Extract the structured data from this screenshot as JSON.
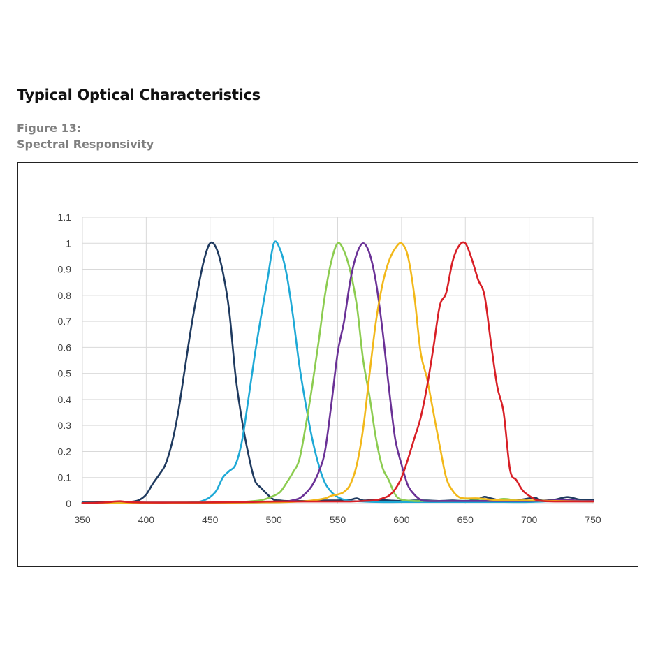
{
  "header": {
    "title": "Typical Optical Characteristics",
    "figure_number": "Figure 13:",
    "figure_title": "Spectral Responsivity"
  },
  "chart_data": {
    "type": "line",
    "title": "",
    "xlabel": "",
    "ylabel": "",
    "xlim": [
      350,
      750
    ],
    "ylim": [
      0,
      1.1
    ],
    "x_ticks": [
      350,
      400,
      450,
      500,
      550,
      600,
      650,
      700,
      750
    ],
    "y_ticks": [
      0,
      0.1,
      0.2,
      0.3,
      0.4,
      0.5,
      0.6,
      0.7,
      0.8,
      0.9,
      1,
      1.1
    ],
    "y_tick_labels": [
      "0",
      "0.1",
      "0.2",
      "0.3",
      "0.4",
      "0.5",
      "0.6",
      "0.7",
      "0.8",
      "0.9",
      "1",
      "1.1"
    ],
    "grid": true,
    "legend": "none",
    "series": [
      {
        "color": "#1f3a5f",
        "points": [
          [
            350,
            0.005
          ],
          [
            360,
            0.007
          ],
          [
            370,
            0.006
          ],
          [
            380,
            0.005
          ],
          [
            390,
            0.008
          ],
          [
            395,
            0.015
          ],
          [
            400,
            0.035
          ],
          [
            405,
            0.075
          ],
          [
            410,
            0.11
          ],
          [
            415,
            0.15
          ],
          [
            420,
            0.23
          ],
          [
            425,
            0.35
          ],
          [
            430,
            0.51
          ],
          [
            435,
            0.67
          ],
          [
            440,
            0.81
          ],
          [
            445,
            0.93
          ],
          [
            450,
            1.0
          ],
          [
            455,
            0.98
          ],
          [
            460,
            0.89
          ],
          [
            465,
            0.74
          ],
          [
            470,
            0.49
          ],
          [
            475,
            0.32
          ],
          [
            480,
            0.19
          ],
          [
            485,
            0.09
          ],
          [
            490,
            0.06
          ],
          [
            495,
            0.035
          ],
          [
            500,
            0.015
          ],
          [
            505,
            0.012
          ],
          [
            510,
            0.01
          ],
          [
            520,
            0.01
          ],
          [
            530,
            0.01
          ],
          [
            540,
            0.012
          ],
          [
            550,
            0.012
          ],
          [
            560,
            0.015
          ],
          [
            565,
            0.02
          ],
          [
            570,
            0.012
          ],
          [
            580,
            0.014
          ],
          [
            590,
            0.012
          ],
          [
            600,
            0.01
          ],
          [
            610,
            0.012
          ],
          [
            620,
            0.012
          ],
          [
            630,
            0.01
          ],
          [
            640,
            0.012
          ],
          [
            650,
            0.01
          ],
          [
            660,
            0.018
          ],
          [
            665,
            0.026
          ],
          [
            670,
            0.02
          ],
          [
            680,
            0.01
          ],
          [
            690,
            0.012
          ],
          [
            700,
            0.02
          ],
          [
            705,
            0.022
          ],
          [
            710,
            0.012
          ],
          [
            720,
            0.015
          ],
          [
            730,
            0.025
          ],
          [
            740,
            0.015
          ],
          [
            750,
            0.015
          ]
        ]
      },
      {
        "color": "#1ea9d6",
        "points": [
          [
            350,
            0.003
          ],
          [
            370,
            0.003
          ],
          [
            390,
            0.004
          ],
          [
            410,
            0.004
          ],
          [
            430,
            0.004
          ],
          [
            440,
            0.006
          ],
          [
            445,
            0.012
          ],
          [
            450,
            0.025
          ],
          [
            455,
            0.05
          ],
          [
            460,
            0.1
          ],
          [
            465,
            0.125
          ],
          [
            470,
            0.15
          ],
          [
            475,
            0.24
          ],
          [
            480,
            0.4
          ],
          [
            485,
            0.57
          ],
          [
            490,
            0.72
          ],
          [
            495,
            0.86
          ],
          [
            500,
            1.0
          ],
          [
            505,
            0.975
          ],
          [
            510,
            0.88
          ],
          [
            515,
            0.72
          ],
          [
            520,
            0.53
          ],
          [
            525,
            0.38
          ],
          [
            530,
            0.25
          ],
          [
            535,
            0.15
          ],
          [
            540,
            0.08
          ],
          [
            545,
            0.045
          ],
          [
            550,
            0.025
          ],
          [
            555,
            0.015
          ],
          [
            560,
            0.01
          ],
          [
            570,
            0.008
          ],
          [
            580,
            0.006
          ],
          [
            600,
            0.006
          ],
          [
            620,
            0.006
          ],
          [
            650,
            0.006
          ],
          [
            680,
            0.006
          ],
          [
            700,
            0.006
          ],
          [
            720,
            0.01
          ],
          [
            730,
            0.012
          ],
          [
            740,
            0.01
          ],
          [
            750,
            0.008
          ]
        ]
      },
      {
        "color": "#8ccc50",
        "points": [
          [
            350,
            0.002
          ],
          [
            400,
            0.003
          ],
          [
            450,
            0.004
          ],
          [
            470,
            0.006
          ],
          [
            480,
            0.008
          ],
          [
            490,
            0.013
          ],
          [
            495,
            0.02
          ],
          [
            500,
            0.03
          ],
          [
            505,
            0.045
          ],
          [
            510,
            0.08
          ],
          [
            515,
            0.12
          ],
          [
            520,
            0.17
          ],
          [
            525,
            0.3
          ],
          [
            530,
            0.45
          ],
          [
            535,
            0.62
          ],
          [
            540,
            0.8
          ],
          [
            545,
            0.93
          ],
          [
            550,
            1.0
          ],
          [
            555,
            0.97
          ],
          [
            560,
            0.89
          ],
          [
            565,
            0.76
          ],
          [
            570,
            0.55
          ],
          [
            575,
            0.41
          ],
          [
            580,
            0.25
          ],
          [
            585,
            0.14
          ],
          [
            590,
            0.09
          ],
          [
            595,
            0.035
          ],
          [
            600,
            0.015
          ],
          [
            610,
            0.01
          ],
          [
            620,
            0.01
          ],
          [
            640,
            0.01
          ],
          [
            660,
            0.012
          ],
          [
            670,
            0.01
          ],
          [
            680,
            0.018
          ],
          [
            690,
            0.012
          ],
          [
            700,
            0.01
          ],
          [
            720,
            0.01
          ],
          [
            750,
            0.008
          ]
        ]
      },
      {
        "color": "#6a3196",
        "points": [
          [
            350,
            0.001
          ],
          [
            400,
            0.002
          ],
          [
            450,
            0.003
          ],
          [
            480,
            0.004
          ],
          [
            500,
            0.006
          ],
          [
            510,
            0.008
          ],
          [
            515,
            0.013
          ],
          [
            520,
            0.02
          ],
          [
            525,
            0.04
          ],
          [
            530,
            0.07
          ],
          [
            535,
            0.12
          ],
          [
            540,
            0.2
          ],
          [
            545,
            0.38
          ],
          [
            550,
            0.58
          ],
          [
            555,
            0.7
          ],
          [
            560,
            0.86
          ],
          [
            565,
            0.96
          ],
          [
            570,
            1.0
          ],
          [
            575,
            0.96
          ],
          [
            580,
            0.85
          ],
          [
            585,
            0.67
          ],
          [
            590,
            0.45
          ],
          [
            595,
            0.25
          ],
          [
            600,
            0.15
          ],
          [
            605,
            0.07
          ],
          [
            610,
            0.035
          ],
          [
            615,
            0.015
          ],
          [
            620,
            0.01
          ],
          [
            640,
            0.01
          ],
          [
            660,
            0.01
          ],
          [
            680,
            0.01
          ],
          [
            700,
            0.01
          ],
          [
            720,
            0.012
          ],
          [
            730,
            0.015
          ],
          [
            740,
            0.01
          ],
          [
            750,
            0.01
          ]
        ]
      },
      {
        "color": "#f2b81a",
        "points": [
          [
            350,
            0.001
          ],
          [
            400,
            0.002
          ],
          [
            450,
            0.003
          ],
          [
            500,
            0.005
          ],
          [
            520,
            0.008
          ],
          [
            530,
            0.012
          ],
          [
            540,
            0.02
          ],
          [
            545,
            0.03
          ],
          [
            550,
            0.035
          ],
          [
            555,
            0.045
          ],
          [
            560,
            0.075
          ],
          [
            565,
            0.15
          ],
          [
            570,
            0.29
          ],
          [
            575,
            0.5
          ],
          [
            580,
            0.7
          ],
          [
            585,
            0.84
          ],
          [
            590,
            0.93
          ],
          [
            595,
            0.98
          ],
          [
            600,
            1.0
          ],
          [
            605,
            0.95
          ],
          [
            610,
            0.8
          ],
          [
            615,
            0.58
          ],
          [
            620,
            0.48
          ],
          [
            625,
            0.35
          ],
          [
            630,
            0.22
          ],
          [
            635,
            0.1
          ],
          [
            640,
            0.05
          ],
          [
            645,
            0.025
          ],
          [
            650,
            0.02
          ],
          [
            660,
            0.02
          ],
          [
            670,
            0.015
          ],
          [
            680,
            0.012
          ],
          [
            690,
            0.012
          ],
          [
            700,
            0.012
          ],
          [
            720,
            0.01
          ],
          [
            750,
            0.008
          ]
        ]
      },
      {
        "color": "#d81f26",
        "points": [
          [
            350,
            0.002
          ],
          [
            360,
            0.003
          ],
          [
            370,
            0.005
          ],
          [
            375,
            0.008
          ],
          [
            380,
            0.009
          ],
          [
            385,
            0.006
          ],
          [
            390,
            0.005
          ],
          [
            400,
            0.004
          ],
          [
            420,
            0.004
          ],
          [
            440,
            0.004
          ],
          [
            460,
            0.005
          ],
          [
            480,
            0.006
          ],
          [
            500,
            0.008
          ],
          [
            520,
            0.008
          ],
          [
            540,
            0.008
          ],
          [
            560,
            0.008
          ],
          [
            570,
            0.01
          ],
          [
            580,
            0.013
          ],
          [
            585,
            0.02
          ],
          [
            590,
            0.03
          ],
          [
            595,
            0.055
          ],
          [
            600,
            0.1
          ],
          [
            605,
            0.17
          ],
          [
            610,
            0.25
          ],
          [
            615,
            0.33
          ],
          [
            620,
            0.45
          ],
          [
            625,
            0.6
          ],
          [
            630,
            0.76
          ],
          [
            635,
            0.81
          ],
          [
            640,
            0.93
          ],
          [
            645,
            0.99
          ],
          [
            650,
            1.0
          ],
          [
            655,
            0.94
          ],
          [
            660,
            0.86
          ],
          [
            665,
            0.8
          ],
          [
            670,
            0.62
          ],
          [
            675,
            0.45
          ],
          [
            680,
            0.35
          ],
          [
            685,
            0.13
          ],
          [
            690,
            0.09
          ],
          [
            695,
            0.05
          ],
          [
            700,
            0.03
          ],
          [
            705,
            0.015
          ],
          [
            710,
            0.01
          ],
          [
            720,
            0.008
          ],
          [
            740,
            0.008
          ],
          [
            750,
            0.008
          ]
        ]
      }
    ]
  }
}
